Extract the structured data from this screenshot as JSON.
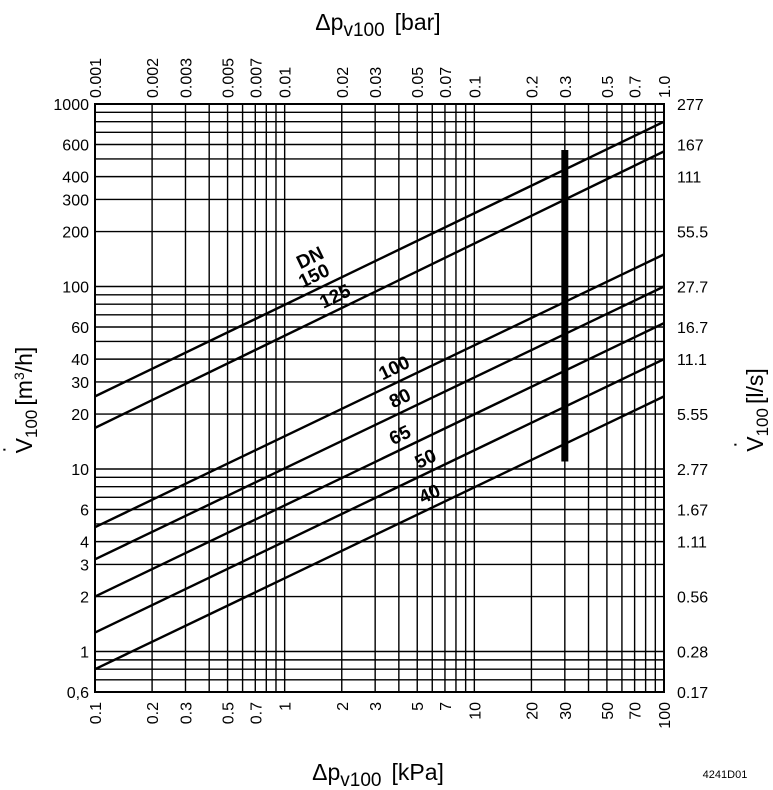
{
  "chart_data": {
    "type": "line",
    "x_scale": "log",
    "y_scale": "log",
    "grid": true,
    "top_axis": {
      "title": "Δp",
      "title_sub": "v100",
      "title_unit": "[bar]",
      "range": [
        0.001,
        1.0
      ],
      "ticks": [
        {
          "v": 0.001,
          "label": "0.001"
        },
        {
          "v": 0.002,
          "label": "0.002"
        },
        {
          "v": 0.003,
          "label": "0.003"
        },
        {
          "v": 0.005,
          "label": "0.005"
        },
        {
          "v": 0.007,
          "label": "0.007"
        },
        {
          "v": 0.01,
          "label": "0.01"
        },
        {
          "v": 0.02,
          "label": "0.02"
        },
        {
          "v": 0.03,
          "label": "0.03"
        },
        {
          "v": 0.05,
          "label": "0.05"
        },
        {
          "v": 0.07,
          "label": "0.07"
        },
        {
          "v": 0.1,
          "label": "0.1"
        },
        {
          "v": 0.2,
          "label": "0.2"
        },
        {
          "v": 0.3,
          "label": "0.3"
        },
        {
          "v": 0.5,
          "label": "0.5"
        },
        {
          "v": 0.7,
          "label": "0.7"
        },
        {
          "v": 1.0,
          "label": "1.0"
        }
      ]
    },
    "bottom_axis": {
      "title": "Δp",
      "title_sub": "v100",
      "title_unit": "[kPa]",
      "range": [
        0.1,
        100
      ],
      "ticks": [
        {
          "v": 0.1,
          "label": "0.1"
        },
        {
          "v": 0.2,
          "label": "0.2"
        },
        {
          "v": 0.3,
          "label": "0.3"
        },
        {
          "v": 0.5,
          "label": "0.5"
        },
        {
          "v": 0.7,
          "label": "0.7"
        },
        {
          "v": 1,
          "label": "1"
        },
        {
          "v": 2,
          "label": "2"
        },
        {
          "v": 3,
          "label": "3"
        },
        {
          "v": 5,
          "label": "5"
        },
        {
          "v": 7,
          "label": "7"
        },
        {
          "v": 10,
          "label": "10"
        },
        {
          "v": 20,
          "label": "20"
        },
        {
          "v": 30,
          "label": "30"
        },
        {
          "v": 50,
          "label": "50"
        },
        {
          "v": 70,
          "label": "70"
        },
        {
          "v": 100,
          "label": "100"
        }
      ]
    },
    "left_axis": {
      "title_sym": "V",
      "title_sub": "100",
      "title_unit_pre": "[m",
      "title_unit_sup": "3",
      "title_unit_post": "/h]",
      "range": [
        0.6,
        1000
      ],
      "ticks": [
        {
          "v": 1000,
          "label": "1000"
        },
        {
          "v": 600,
          "label": "600"
        },
        {
          "v": 400,
          "label": "400"
        },
        {
          "v": 300,
          "label": "300"
        },
        {
          "v": 200,
          "label": "200"
        },
        {
          "v": 100,
          "label": "100"
        },
        {
          "v": 60,
          "label": "60"
        },
        {
          "v": 40,
          "label": "40"
        },
        {
          "v": 30,
          "label": "30"
        },
        {
          "v": 20,
          "label": "20"
        },
        {
          "v": 10,
          "label": "10"
        },
        {
          "v": 6,
          "label": "6"
        },
        {
          "v": 4,
          "label": "4"
        },
        {
          "v": 3,
          "label": "3"
        },
        {
          "v": 2,
          "label": "2"
        },
        {
          "v": 1,
          "label": "1"
        },
        {
          "v": 0.6,
          "label": "0,6"
        }
      ]
    },
    "right_axis": {
      "title_sym": "V",
      "title_sub": "100",
      "title_unit": "[l/s]",
      "ticks": [
        {
          "v": 1000,
          "label": "277"
        },
        {
          "v": 600,
          "label": "167"
        },
        {
          "v": 400,
          "label": "111"
        },
        {
          "v": 200,
          "label": "55.5"
        },
        {
          "v": 100,
          "label": "27.7"
        },
        {
          "v": 60,
          "label": "16.7"
        },
        {
          "v": 40,
          "label": "11.1"
        },
        {
          "v": 20,
          "label": "5.55"
        },
        {
          "v": 10,
          "label": "2.77"
        },
        {
          "v": 6,
          "label": "1.67"
        },
        {
          "v": 4,
          "label": "1.11"
        },
        {
          "v": 2,
          "label": "0.56"
        },
        {
          "v": 1,
          "label": "0.28"
        },
        {
          "v": 0.6,
          "label": "0.17"
        }
      ]
    },
    "series_header": "DN",
    "series": [
      {
        "name": "150",
        "x": [
          0.1,
          100
        ],
        "y": [
          25,
          800
        ]
      },
      {
        "name": "125",
        "x": [
          0.1,
          100
        ],
        "y": [
          16.8,
          550
        ]
      },
      {
        "name": "100",
        "x": [
          0.1,
          100
        ],
        "y": [
          4.8,
          150
        ]
      },
      {
        "name": "80",
        "x": [
          0.1,
          100
        ],
        "y": [
          3.2,
          100
        ]
      },
      {
        "name": "65",
        "x": [
          0.1,
          100
        ],
        "y": [
          2.0,
          63
        ]
      },
      {
        "name": "50",
        "x": [
          0.1,
          100
        ],
        "y": [
          1.27,
          40
        ]
      },
      {
        "name": "40",
        "x": [
          0.1,
          100
        ],
        "y": [
          0.8,
          25
        ]
      }
    ],
    "vertical_marker": {
      "x": 30,
      "y_from": 11,
      "y_to": 560
    },
    "code_label": "4241D01"
  }
}
